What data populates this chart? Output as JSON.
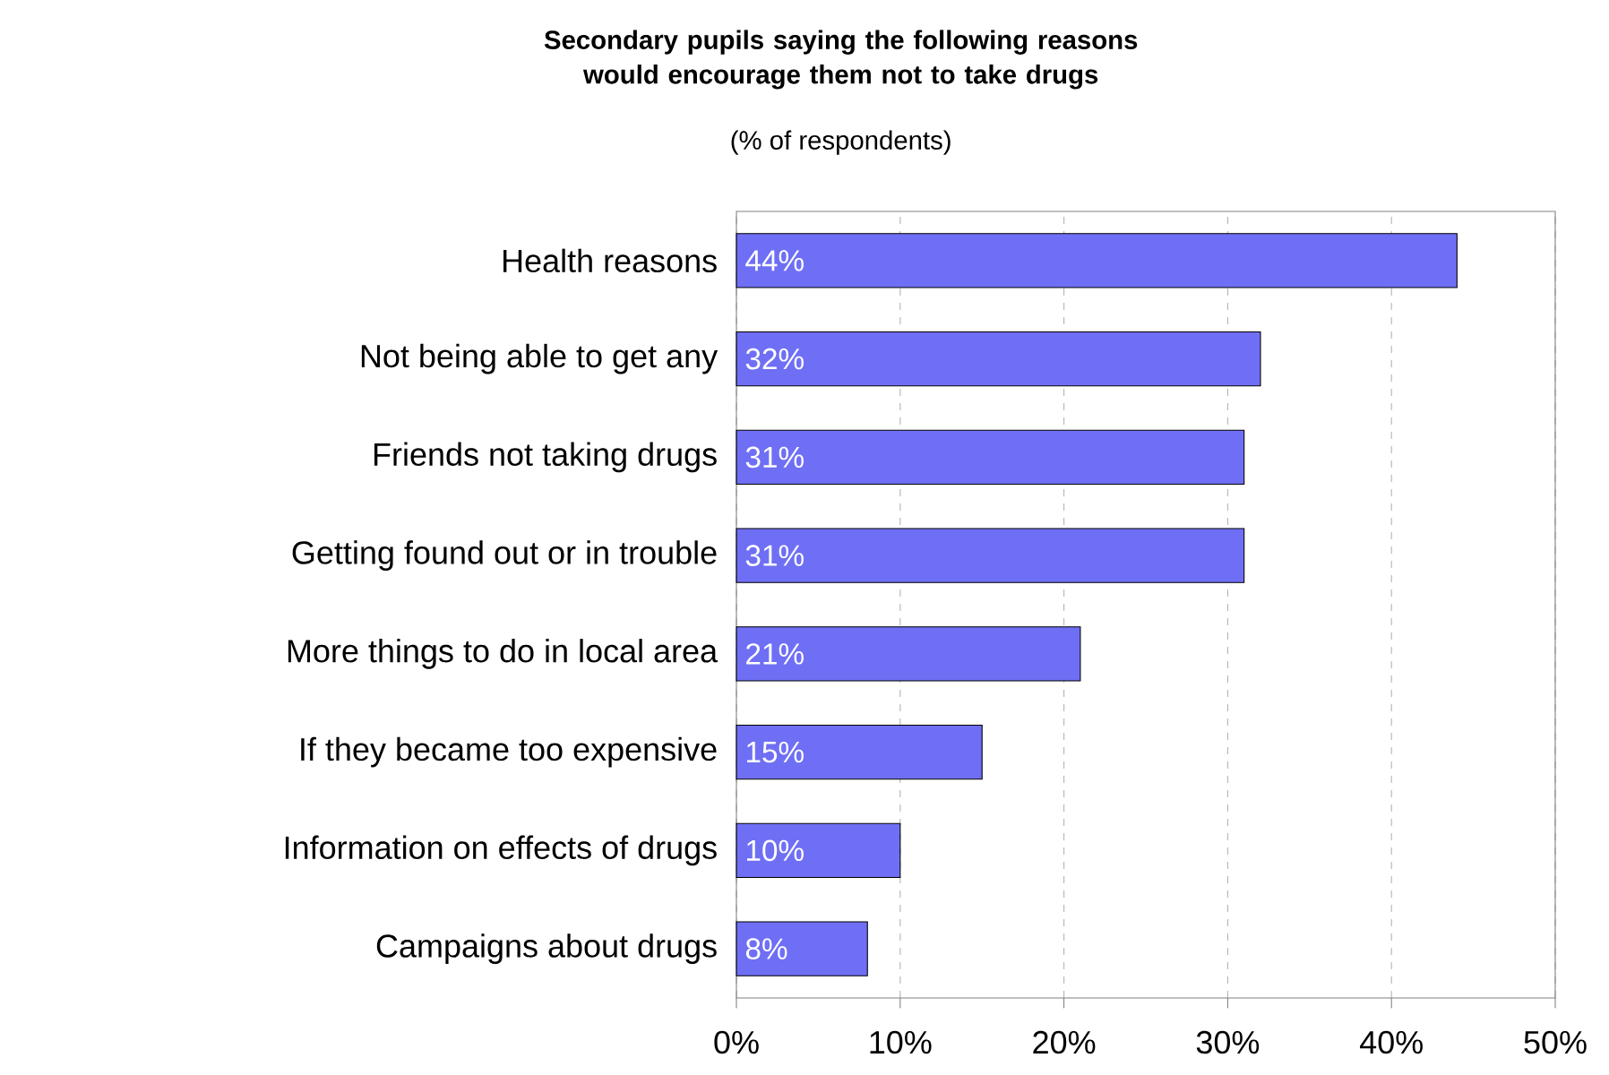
{
  "chart_data": {
    "type": "bar",
    "orientation": "horizontal",
    "title": "Secondary pupils saying the following reasons would encourage them not to take drugs",
    "subtitle": "(% of respondents)",
    "categories": [
      "Health reasons",
      "Not being able to get any",
      "Friends not taking drugs",
      "Getting found out or in trouble",
      "More things to do in local area",
      "If they became too expensive",
      "Information on effects of drugs",
      "Campaigns about drugs"
    ],
    "values": [
      44,
      32,
      31,
      31,
      21,
      15,
      10,
      8
    ],
    "value_labels": [
      "44%",
      "32%",
      "31%",
      "31%",
      "21%",
      "15%",
      "10%",
      "8%"
    ],
    "color": "#6f6ff5",
    "xlim": [
      0,
      50
    ],
    "xticks": [
      {
        "value": 0,
        "label": "0%"
      },
      {
        "value": 10,
        "label": "10%"
      },
      {
        "value": 20,
        "label": "20%"
      },
      {
        "value": 30,
        "label": "30%"
      },
      {
        "value": 40,
        "label": "40%"
      },
      {
        "value": 50,
        "label": "50%"
      }
    ],
    "grid": "x"
  }
}
